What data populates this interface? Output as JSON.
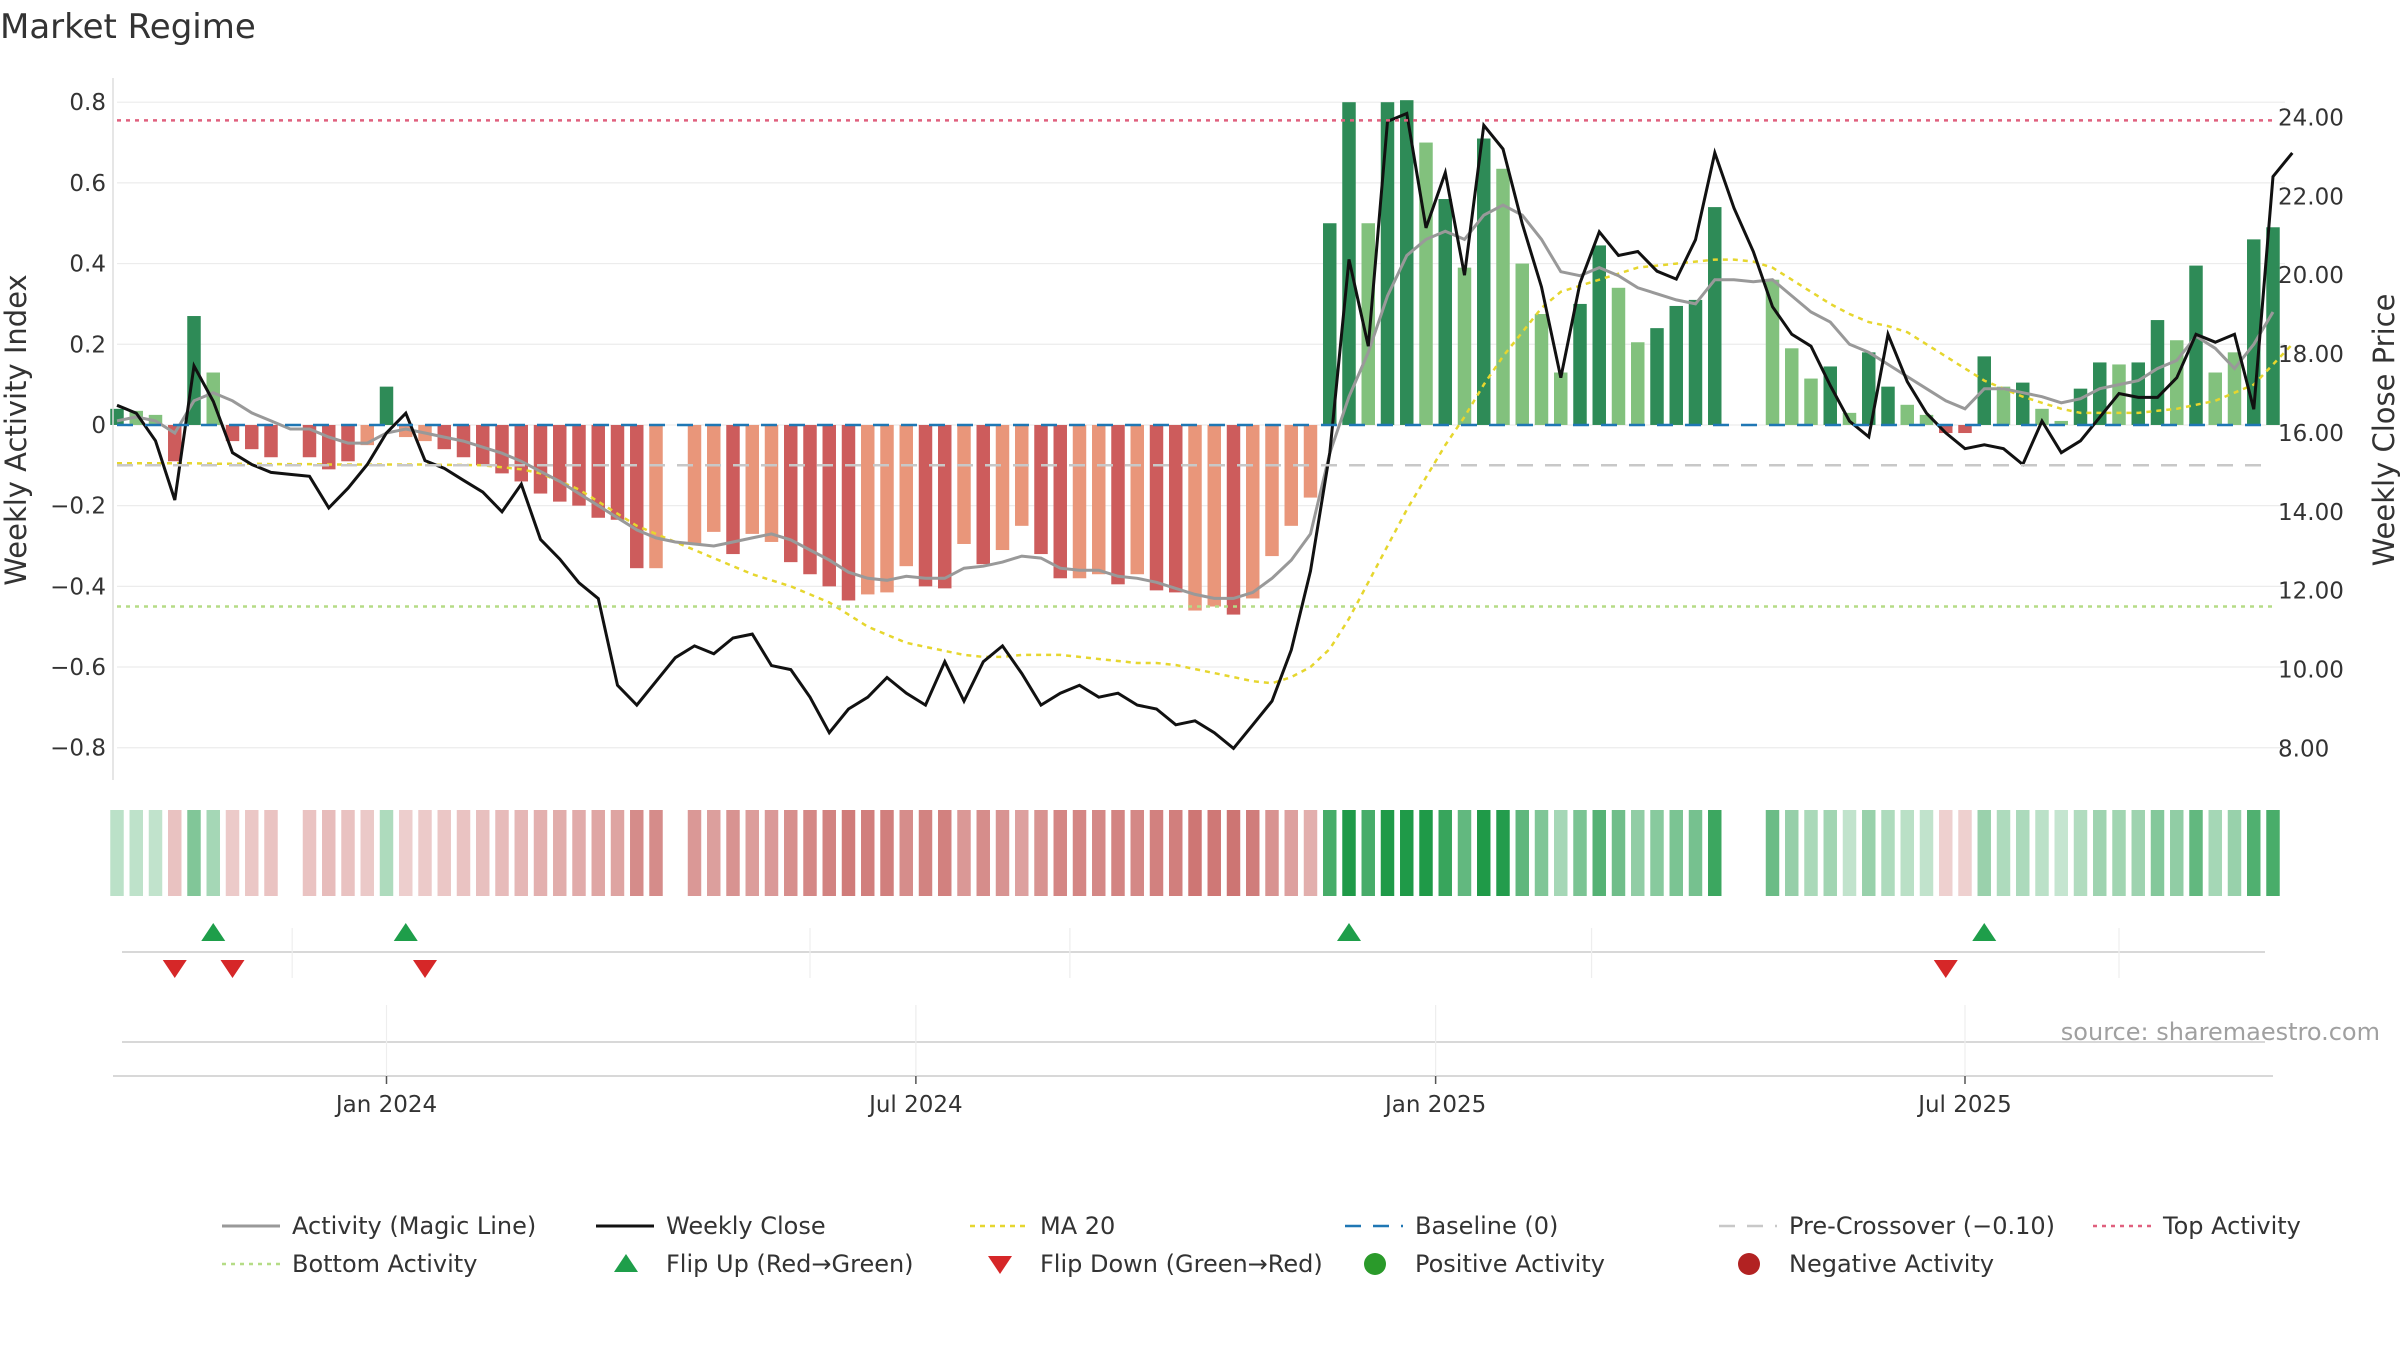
{
  "title": "Market Regime",
  "source": "source: sharemaestro.com",
  "colors": {
    "dark_green": "#2e8b57",
    "light_green": "#82c17d",
    "dark_red": "#cd5c5c",
    "light_red": "#e9967a",
    "magic_line": "#999999",
    "close_line": "#111111",
    "ma20": "#e6d62e",
    "baseline": "#1f77b4",
    "pre_crossover": "#c8c8c8",
    "top_activity": "#e0607e",
    "bottom_activity": "#b5dc86",
    "flip_up": "#1e9e4a",
    "flip_down": "#d62728"
  },
  "chart_data": {
    "type": "bar",
    "title": "Market Regime",
    "x_tick_labels": [
      "Jan 2024",
      "Jul 2024",
      "Jan 2025",
      "Jul 2025"
    ],
    "y_left": {
      "label": "Weekly Activity Index",
      "ylim": [
        -0.88,
        0.86
      ],
      "ticks": [
        0.8,
        0.6,
        0.4,
        0.2,
        0,
        -0.2,
        -0.4,
        -0.6,
        -0.8
      ],
      "tick_labels": [
        "0.8",
        "0.6",
        "0.4",
        "0.2",
        "0",
        "−0.2",
        "−0.4",
        "−0.6",
        "−0.8"
      ]
    },
    "y_right": {
      "label": "Weekly Close Price",
      "ylim": [
        7.2,
        25.0
      ],
      "ticks": [
        24,
        22,
        20,
        18,
        16,
        14,
        12,
        10,
        8
      ],
      "tick_labels": [
        "24.00",
        "22.00",
        "20.00",
        "18.00",
        "16.00",
        "14.00",
        "12.00",
        "10.00",
        "8.00"
      ]
    },
    "reference_lines": {
      "baseline": 0,
      "pre_crossover": -0.1,
      "top_activity": 0.755,
      "bottom_activity": -0.45
    },
    "activity": [
      0.04,
      0.035,
      0.025,
      -0.09,
      0.27,
      0.13,
      -0.04,
      -0.06,
      -0.08,
      null,
      -0.08,
      -0.11,
      -0.09,
      -0.05,
      0.095,
      -0.03,
      -0.04,
      -0.06,
      -0.08,
      -0.1,
      -0.12,
      -0.14,
      -0.17,
      -0.19,
      -0.2,
      -0.23,
      -0.235,
      -0.355,
      -0.355,
      null,
      -0.295,
      -0.265,
      -0.32,
      -0.27,
      -0.29,
      -0.34,
      -0.37,
      -0.4,
      -0.435,
      -0.42,
      -0.415,
      -0.35,
      -0.4,
      -0.405,
      -0.295,
      -0.345,
      -0.31,
      -0.25,
      -0.32,
      -0.38,
      -0.38,
      -0.37,
      -0.395,
      -0.37,
      -0.41,
      -0.415,
      -0.46,
      -0.45,
      -0.47,
      -0.43,
      -0.325,
      -0.25,
      -0.18,
      0.5,
      0.8,
      0.5,
      0.8,
      0.805,
      0.7,
      0.56,
      0.39,
      0.71,
      0.635,
      0.4,
      0.275,
      0.13,
      0.3,
      0.445,
      0.34,
      0.205,
      0.24,
      0.295,
      0.31,
      0.54,
      null,
      null,
      0.36,
      0.19,
      0.115,
      0.145,
      0.03,
      0.18,
      0.095,
      0.05,
      0.025,
      -0.02,
      -0.02,
      0.17,
      0.095,
      0.105,
      0.04,
      0.01,
      0.09,
      0.155,
      0.15,
      0.155,
      0.26,
      0.21,
      0.395,
      0.13,
      0.18,
      0.46,
      0.49
    ],
    "activity_shade": [
      "d",
      "l",
      "l",
      "d",
      "d",
      "l",
      "d",
      "d",
      "d",
      null,
      "d",
      "d",
      "d",
      "l",
      "d",
      "l",
      "l",
      "d",
      "d",
      "d",
      "d",
      "d",
      "d",
      "d",
      "d",
      "d",
      "d",
      "d",
      "l",
      null,
      "l",
      "l",
      "d",
      "l",
      "l",
      "d",
      "d",
      "d",
      "d",
      "l",
      "l",
      "l",
      "d",
      "d",
      "l",
      "d",
      "l",
      "l",
      "d",
      "d",
      "l",
      "l",
      "d",
      "l",
      "d",
      "d",
      "l",
      "l",
      "d",
      "l",
      "l",
      "l",
      "l",
      "d",
      "d",
      "l",
      "d",
      "d",
      "l",
      "d",
      "l",
      "d",
      "l",
      "l",
      "l",
      "l",
      "d",
      "d",
      "l",
      "l",
      "d",
      "d",
      "d",
      "d",
      null,
      null,
      "l",
      "l",
      "l",
      "d",
      "l",
      "d",
      "d",
      "l",
      "l",
      "d",
      "d",
      "d",
      "l",
      "d",
      "l",
      "l",
      "d",
      "d",
      "l",
      "d",
      "d",
      "l",
      "d",
      "l",
      "l",
      "d",
      "d"
    ],
    "magic_line": [
      0.01,
      0.02,
      0.01,
      -0.02,
      0.06,
      0.08,
      0.06,
      0.03,
      0.01,
      -0.01,
      -0.01,
      -0.03,
      -0.045,
      -0.045,
      -0.02,
      -0.01,
      -0.02,
      -0.03,
      -0.04,
      -0.055,
      -0.07,
      -0.09,
      -0.115,
      -0.14,
      -0.17,
      -0.2,
      -0.23,
      -0.26,
      -0.28,
      -0.29,
      -0.295,
      -0.3,
      -0.29,
      -0.28,
      -0.27,
      -0.285,
      -0.31,
      -0.335,
      -0.365,
      -0.38,
      -0.385,
      -0.375,
      -0.38,
      -0.38,
      -0.355,
      -0.35,
      -0.34,
      -0.325,
      -0.33,
      -0.355,
      -0.36,
      -0.36,
      -0.375,
      -0.38,
      -0.39,
      -0.405,
      -0.42,
      -0.43,
      -0.43,
      -0.415,
      -0.38,
      -0.335,
      -0.27,
      -0.07,
      0.07,
      0.18,
      0.32,
      0.42,
      0.46,
      0.48,
      0.46,
      0.52,
      0.545,
      0.52,
      0.46,
      0.38,
      0.37,
      0.39,
      0.37,
      0.34,
      0.325,
      0.31,
      0.3,
      0.36,
      0.36,
      0.355,
      0.36,
      0.32,
      0.28,
      0.255,
      0.2,
      0.18,
      0.15,
      0.12,
      0.09,
      0.06,
      0.04,
      0.09,
      0.09,
      0.08,
      0.07,
      0.055,
      0.065,
      0.09,
      0.1,
      0.11,
      0.14,
      0.16,
      0.22,
      0.19,
      0.14,
      0.2,
      0.28
    ],
    "weekly_close": [
      16.7,
      16.5,
      15.8,
      14.3,
      17.7,
      16.8,
      15.5,
      15.2,
      15.0,
      14.95,
      14.9,
      14.1,
      14.6,
      15.2,
      16.0,
      16.5,
      15.3,
      15.1,
      14.8,
      14.5,
      14.0,
      14.7,
      13.3,
      12.8,
      12.2,
      11.8,
      9.6,
      9.1,
      9.7,
      10.3,
      10.6,
      10.4,
      10.8,
      10.9,
      10.1,
      10.0,
      9.3,
      8.4,
      9.0,
      9.3,
      9.8,
      9.4,
      9.1,
      10.2,
      9.2,
      10.2,
      10.6,
      9.9,
      9.1,
      9.4,
      9.6,
      9.3,
      9.4,
      9.1,
      9.0,
      8.6,
      8.7,
      8.4,
      8.0,
      8.6,
      9.2,
      10.5,
      12.5,
      15.5,
      20.4,
      18.2,
      23.9,
      24.1,
      21.2,
      22.6,
      20.0,
      23.8,
      23.2,
      21.3,
      19.7,
      17.4,
      19.8,
      21.1,
      20.5,
      20.6,
      20.1,
      19.9,
      20.9,
      23.1,
      21.7,
      20.6,
      19.2,
      18.5,
      18.2,
      17.2,
      16.3,
      15.9,
      18.5,
      17.3,
      16.5,
      16.0,
      15.6,
      15.7,
      15.6,
      15.2,
      16.3,
      15.5,
      15.8,
      16.4,
      17.0,
      16.9,
      16.9,
      17.4,
      18.5,
      18.3,
      18.5,
      16.6,
      22.5,
      23.1
    ],
    "ma20": [
      -0.095,
      -0.095,
      -0.095,
      -0.095,
      -0.095,
      -0.096,
      -0.096,
      -0.096,
      -0.097,
      -0.097,
      -0.097,
      -0.098,
      -0.098,
      -0.098,
      -0.098,
      -0.098,
      -0.098,
      -0.099,
      -0.099,
      -0.1,
      -0.105,
      -0.11,
      -0.12,
      -0.14,
      -0.16,
      -0.19,
      -0.22,
      -0.25,
      -0.27,
      -0.29,
      -0.31,
      -0.33,
      -0.35,
      -0.37,
      -0.385,
      -0.4,
      -0.42,
      -0.44,
      -0.47,
      -0.5,
      -0.52,
      -0.54,
      -0.55,
      -0.56,
      -0.57,
      -0.575,
      -0.575,
      -0.57,
      -0.57,
      -0.57,
      -0.575,
      -0.58,
      -0.585,
      -0.59,
      -0.59,
      -0.595,
      -0.605,
      -0.615,
      -0.625,
      -0.635,
      -0.64,
      -0.625,
      -0.6,
      -0.555,
      -0.48,
      -0.39,
      -0.3,
      -0.21,
      -0.13,
      -0.05,
      0.02,
      0.1,
      0.17,
      0.23,
      0.29,
      0.33,
      0.345,
      0.36,
      0.375,
      0.39,
      0.395,
      0.4,
      0.405,
      0.41,
      0.41,
      0.405,
      0.39,
      0.36,
      0.33,
      0.3,
      0.275,
      0.255,
      0.245,
      0.23,
      0.2,
      0.17,
      0.14,
      0.11,
      0.09,
      0.07,
      0.055,
      0.04,
      0.03,
      0.03,
      0.03,
      0.03,
      0.035,
      0.04,
      0.05,
      0.06,
      0.08,
      0.1,
      0.15,
      0.2
    ],
    "flip_up": [
      5,
      15,
      64,
      97
    ],
    "flip_down": [
      3,
      6,
      16,
      95
    ],
    "legend": [
      "Activity (Magic Line)",
      "Weekly Close",
      "MA 20",
      "Baseline (0)",
      "Pre-Crossover (−0.10)",
      "Top Activity",
      "Bottom Activity",
      "Flip Up (Red→Green)",
      "Flip Down (Green→Red)",
      "Positive Activity",
      "Negative Activity"
    ]
  }
}
